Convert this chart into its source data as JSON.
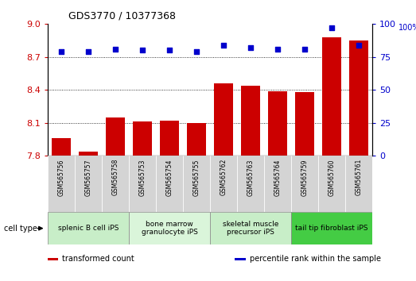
{
  "title": "GDS3770 / 10377368",
  "samples": [
    "GSM565756",
    "GSM565757",
    "GSM565758",
    "GSM565753",
    "GSM565754",
    "GSM565755",
    "GSM565762",
    "GSM565763",
    "GSM565764",
    "GSM565759",
    "GSM565760",
    "GSM565761"
  ],
  "bar_values": [
    7.96,
    7.84,
    8.15,
    8.11,
    8.12,
    8.1,
    8.46,
    8.44,
    8.39,
    8.38,
    8.88,
    8.85
  ],
  "dot_values": [
    79,
    79,
    81,
    80,
    80,
    79,
    84,
    82,
    81,
    81,
    97,
    84
  ],
  "ylim_left": [
    7.8,
    9.0
  ],
  "ylim_right": [
    0,
    100
  ],
  "yticks_left": [
    7.8,
    8.1,
    8.4,
    8.7,
    9.0
  ],
  "yticks_right": [
    0,
    25,
    50,
    75,
    100
  ],
  "bar_color": "#cc0000",
  "dot_color": "#0000cc",
  "grid_color": "#000000",
  "cell_types": [
    {
      "label": "splenic B cell iPS",
      "start": 0,
      "end": 3,
      "color": "#c8eec8"
    },
    {
      "label": "bone marrow\ngranulocyte iPS",
      "start": 3,
      "end": 6,
      "color": "#daf5da"
    },
    {
      "label": "skeletal muscle\nprecursor iPS",
      "start": 6,
      "end": 9,
      "color": "#c8eec8"
    },
    {
      "label": "tail tip fibroblast iPS",
      "start": 9,
      "end": 12,
      "color": "#44cc44"
    }
  ],
  "legend_items": [
    {
      "label": "transformed count",
      "color": "#cc0000"
    },
    {
      "label": "percentile rank within the sample",
      "color": "#0000cc"
    }
  ],
  "cell_type_label": "cell type",
  "xtick_bg": "#d0d0d0",
  "right_ylabel": "100%"
}
